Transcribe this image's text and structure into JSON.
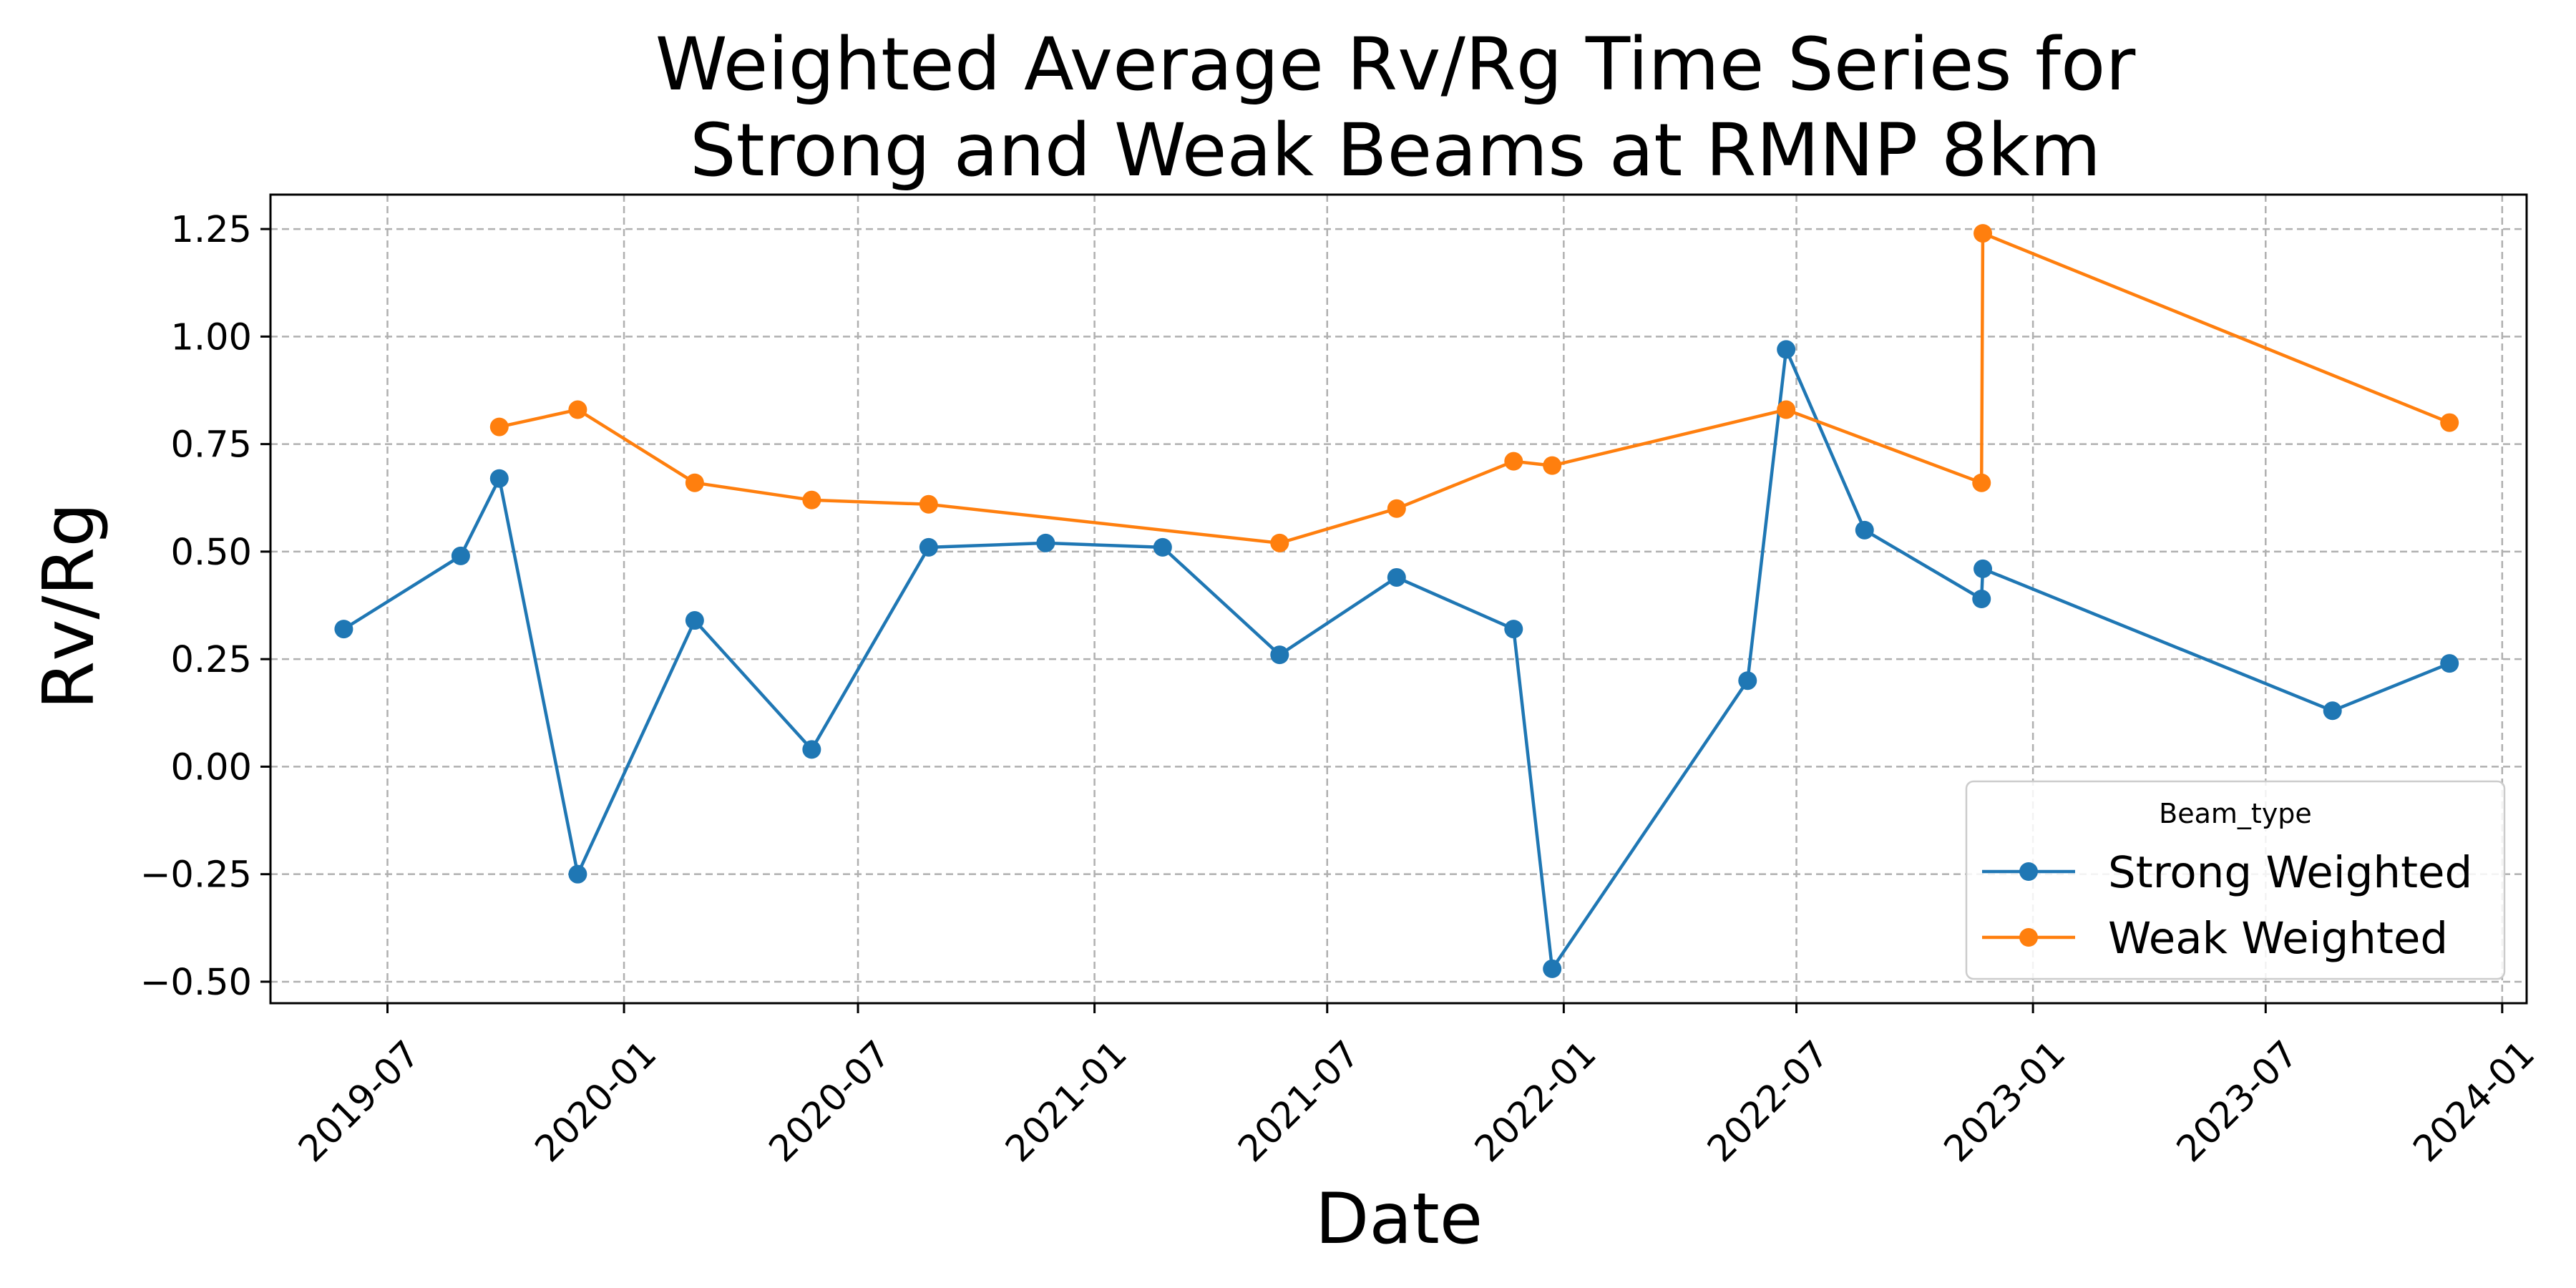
{
  "chart_data": {
    "type": "line",
    "title_lines": [
      "Weighted Average Rv/Rg Time Series for",
      "Strong and Weak Beams at RMNP 8km"
    ],
    "xlabel": "Date",
    "ylabel": "Rv/Rg",
    "xlim": [
      "2019-04-01",
      "2024-01-20"
    ],
    "ylim": [
      -0.55,
      1.33
    ],
    "grid": true,
    "x_ticks": [
      {
        "date": "2019-07-01",
        "label": "2019-07"
      },
      {
        "date": "2020-01-01",
        "label": "2020-01"
      },
      {
        "date": "2020-07-01",
        "label": "2020-07"
      },
      {
        "date": "2021-01-01",
        "label": "2021-01"
      },
      {
        "date": "2021-07-01",
        "label": "2021-07"
      },
      {
        "date": "2022-01-01",
        "label": "2022-01"
      },
      {
        "date": "2022-07-01",
        "label": "2022-07"
      },
      {
        "date": "2023-01-01",
        "label": "2023-01"
      },
      {
        "date": "2023-07-01",
        "label": "2023-07"
      },
      {
        "date": "2024-01-01",
        "label": "2024-01"
      }
    ],
    "y_ticks": [
      {
        "value": -0.5,
        "label": "−0.50"
      },
      {
        "value": -0.25,
        "label": "−0.25"
      },
      {
        "value": 0.0,
        "label": "0.00"
      },
      {
        "value": 0.25,
        "label": "0.25"
      },
      {
        "value": 0.5,
        "label": "0.50"
      },
      {
        "value": 0.75,
        "label": "0.75"
      },
      {
        "value": 1.0,
        "label": "1.00"
      },
      {
        "value": 1.25,
        "label": "1.25"
      }
    ],
    "legend": {
      "title": "Beam_type",
      "position": "lower right"
    },
    "series": [
      {
        "name": "Strong Weighted",
        "color": "#1f77b4",
        "points": [
          {
            "x": "2019-05-28",
            "y": 0.32
          },
          {
            "x": "2019-08-27",
            "y": 0.49
          },
          {
            "x": "2019-09-26",
            "y": 0.67
          },
          {
            "x": "2019-11-26",
            "y": -0.25
          },
          {
            "x": "2020-02-25",
            "y": 0.34
          },
          {
            "x": "2020-05-26",
            "y": 0.04
          },
          {
            "x": "2020-08-25",
            "y": 0.51
          },
          {
            "x": "2020-11-24",
            "y": 0.52
          },
          {
            "x": "2021-02-23",
            "y": 0.51
          },
          {
            "x": "2021-05-25",
            "y": 0.26
          },
          {
            "x": "2021-08-24",
            "y": 0.44
          },
          {
            "x": "2021-11-23",
            "y": 0.32
          },
          {
            "x": "2021-12-23",
            "y": -0.47
          },
          {
            "x": "2022-05-24",
            "y": 0.2
          },
          {
            "x": "2022-06-23",
            "y": 0.97
          },
          {
            "x": "2022-08-23",
            "y": 0.55
          },
          {
            "x": "2022-11-22",
            "y": 0.39
          },
          {
            "x": "2022-11-23",
            "y": 0.46
          },
          {
            "x": "2023-08-22",
            "y": 0.13
          },
          {
            "x": "2023-11-21",
            "y": 0.24
          }
        ]
      },
      {
        "name": "Weak Weighted",
        "color": "#ff7f0e",
        "points": [
          {
            "x": "2019-09-26",
            "y": 0.79
          },
          {
            "x": "2019-11-26",
            "y": 0.83
          },
          {
            "x": "2020-02-25",
            "y": 0.66
          },
          {
            "x": "2020-05-26",
            "y": 0.62
          },
          {
            "x": "2020-08-25",
            "y": 0.61
          },
          {
            "x": "2021-05-25",
            "y": 0.52
          },
          {
            "x": "2021-08-24",
            "y": 0.6
          },
          {
            "x": "2021-11-23",
            "y": 0.71
          },
          {
            "x": "2021-12-23",
            "y": 0.7
          },
          {
            "x": "2022-06-23",
            "y": 0.83
          },
          {
            "x": "2022-11-22",
            "y": 0.66
          },
          {
            "x": "2022-11-23",
            "y": 1.24
          },
          {
            "x": "2023-11-21",
            "y": 0.8
          }
        ]
      }
    ]
  }
}
